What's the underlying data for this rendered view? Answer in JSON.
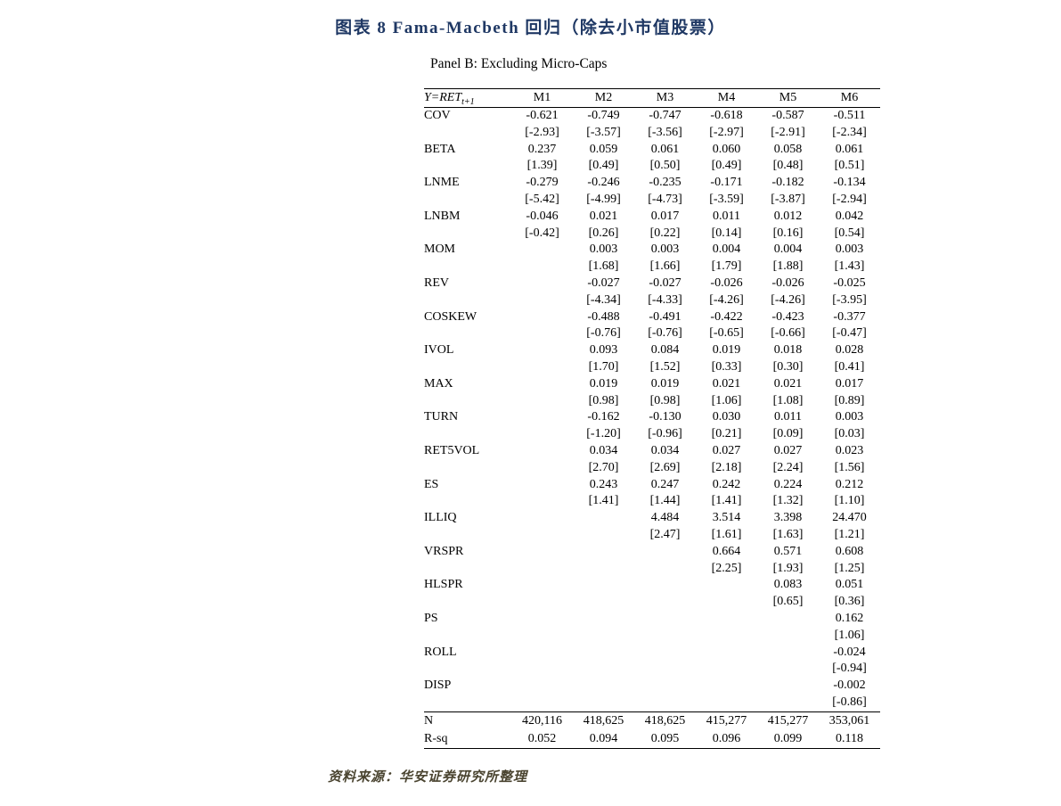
{
  "title": "图表 8  Fama-Macbeth 回归（除去小市值股票）",
  "source": "资料来源：华安证券研究所整理",
  "colors": {
    "title_color": "#1f3864",
    "source_color": "#4a4430",
    "table_rule_color": "#000000",
    "background": "#ffffff"
  },
  "panel": {
    "title": "Panel B: Excluding Micro-Caps"
  },
  "table": {
    "dep_var_label": "Y=RET",
    "dep_var_sub": "t+1",
    "columns": [
      "M1",
      "M2",
      "M3",
      "M4",
      "M5",
      "M6"
    ],
    "rows": [
      {
        "label": "COV",
        "coef": [
          "-0.621",
          "-0.749",
          "-0.747",
          "-0.618",
          "-0.587",
          "-0.511"
        ],
        "tstat": [
          "[-2.93]",
          "[-3.57]",
          "[-3.56]",
          "[-2.97]",
          "[-2.91]",
          "[-2.34]"
        ]
      },
      {
        "label": "BETA",
        "coef": [
          "0.237",
          "0.059",
          "0.061",
          "0.060",
          "0.058",
          "0.061"
        ],
        "tstat": [
          "[1.39]",
          "[0.49]",
          "[0.50]",
          "[0.49]",
          "[0.48]",
          "[0.51]"
        ]
      },
      {
        "label": "LNME",
        "coef": [
          "-0.279",
          "-0.246",
          "-0.235",
          "-0.171",
          "-0.182",
          "-0.134"
        ],
        "tstat": [
          "[-5.42]",
          "[-4.99]",
          "[-4.73]",
          "[-3.59]",
          "[-3.87]",
          "[-2.94]"
        ]
      },
      {
        "label": "LNBM",
        "coef": [
          "-0.046",
          "0.021",
          "0.017",
          "0.011",
          "0.012",
          "0.042"
        ],
        "tstat": [
          "[-0.42]",
          "[0.26]",
          "[0.22]",
          "[0.14]",
          "[0.16]",
          "[0.54]"
        ]
      },
      {
        "label": "MOM",
        "coef": [
          "",
          "0.003",
          "0.003",
          "0.004",
          "0.004",
          "0.003"
        ],
        "tstat": [
          "",
          "[1.68]",
          "[1.66]",
          "[1.79]",
          "[1.88]",
          "[1.43]"
        ]
      },
      {
        "label": "REV",
        "coef": [
          "",
          "-0.027",
          "-0.027",
          "-0.026",
          "-0.026",
          "-0.025"
        ],
        "tstat": [
          "",
          "[-4.34]",
          "[-4.33]",
          "[-4.26]",
          "[-4.26]",
          "[-3.95]"
        ]
      },
      {
        "label": "COSKEW",
        "coef": [
          "",
          "-0.488",
          "-0.491",
          "-0.422",
          "-0.423",
          "-0.377"
        ],
        "tstat": [
          "",
          "[-0.76]",
          "[-0.76]",
          "[-0.65]",
          "[-0.66]",
          "[-0.47]"
        ]
      },
      {
        "label": "IVOL",
        "coef": [
          "",
          "0.093",
          "0.084",
          "0.019",
          "0.018",
          "0.028"
        ],
        "tstat": [
          "",
          "[1.70]",
          "[1.52]",
          "[0.33]",
          "[0.30]",
          "[0.41]"
        ]
      },
      {
        "label": "MAX",
        "coef": [
          "",
          "0.019",
          "0.019",
          "0.021",
          "0.021",
          "0.017"
        ],
        "tstat": [
          "",
          "[0.98]",
          "[0.98]",
          "[1.06]",
          "[1.08]",
          "[0.89]"
        ]
      },
      {
        "label": "TURN",
        "coef": [
          "",
          "-0.162",
          "-0.130",
          "0.030",
          "0.011",
          "0.003"
        ],
        "tstat": [
          "",
          "[-1.20]",
          "[-0.96]",
          "[0.21]",
          "[0.09]",
          "[0.03]"
        ]
      },
      {
        "label": "RET5VOL",
        "coef": [
          "",
          "0.034",
          "0.034",
          "0.027",
          "0.027",
          "0.023"
        ],
        "tstat": [
          "",
          "[2.70]",
          "[2.69]",
          "[2.18]",
          "[2.24]",
          "[1.56]"
        ]
      },
      {
        "label": "ES",
        "coef": [
          "",
          "0.243",
          "0.247",
          "0.242",
          "0.224",
          "0.212"
        ],
        "tstat": [
          "",
          "[1.41]",
          "[1.44]",
          "[1.41]",
          "[1.32]",
          "[1.10]"
        ]
      },
      {
        "label": "ILLIQ",
        "coef": [
          "",
          "",
          "4.484",
          "3.514",
          "3.398",
          "24.470"
        ],
        "tstat": [
          "",
          "",
          "[2.47]",
          "[1.61]",
          "[1.63]",
          "[1.21]"
        ]
      },
      {
        "label": "VRSPR",
        "coef": [
          "",
          "",
          "",
          "0.664",
          "0.571",
          "0.608"
        ],
        "tstat": [
          "",
          "",
          "",
          "[2.25]",
          "[1.93]",
          "[1.25]"
        ]
      },
      {
        "label": "HLSPR",
        "coef": [
          "",
          "",
          "",
          "",
          "0.083",
          "0.051"
        ],
        "tstat": [
          "",
          "",
          "",
          "",
          "[0.65]",
          "[0.36]"
        ]
      },
      {
        "label": "PS",
        "coef": [
          "",
          "",
          "",
          "",
          "",
          "0.162"
        ],
        "tstat": [
          "",
          "",
          "",
          "",
          "",
          "[1.06]"
        ]
      },
      {
        "label": "ROLL",
        "coef": [
          "",
          "",
          "",
          "",
          "",
          "-0.024"
        ],
        "tstat": [
          "",
          "",
          "",
          "",
          "",
          "[-0.94]"
        ]
      },
      {
        "label": "DISP",
        "coef": [
          "",
          "",
          "",
          "",
          "",
          "-0.002"
        ],
        "tstat": [
          "",
          "",
          "",
          "",
          "",
          "[-0.86]"
        ]
      }
    ],
    "summary": [
      {
        "label": "N",
        "values": [
          "420,116",
          "418,625",
          "418,625",
          "415,277",
          "415,277",
          "353,061"
        ]
      },
      {
        "label": "R-sq",
        "values": [
          "0.052",
          "0.094",
          "0.095",
          "0.096",
          "0.099",
          "0.118"
        ]
      }
    ]
  }
}
